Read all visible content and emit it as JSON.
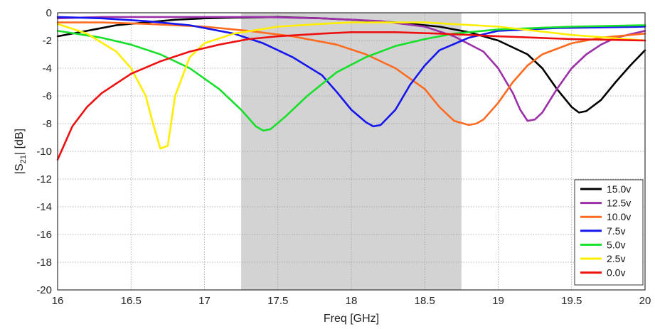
{
  "chart_data": {
    "type": "line",
    "title": "",
    "xlabel": "Freq [GHz]",
    "ylabel": "|S21| [dB]",
    "ylabel_main": "|S",
    "ylabel_sub": "21",
    "ylabel_rest": "| [dB]",
    "xlim": [
      16,
      20
    ],
    "ylim": [
      -20,
      0
    ],
    "xticks": [
      "16",
      "16.5",
      "17",
      "17.5",
      "18",
      "18.5",
      "19",
      "19.5",
      "20"
    ],
    "yticks": [
      "0",
      "-2",
      "-4",
      "-6",
      "-8",
      "-10",
      "-12",
      "-14",
      "-16",
      "-18",
      "-20"
    ],
    "grid": true,
    "legend_position": "bottom-right",
    "shaded_band": {
      "x_start": 17.25,
      "x_end": 18.75,
      "color": "#d3d3d3"
    },
    "series": [
      {
        "name": "15.0v",
        "color": "#000000",
        "x": [
          16.0,
          16.2,
          16.4,
          16.6,
          16.8,
          17.0,
          17.2,
          17.5,
          17.8,
          18.0,
          18.3,
          18.6,
          18.8,
          19.0,
          19.2,
          19.3,
          19.4,
          19.5,
          19.55,
          19.6,
          19.7,
          19.8,
          19.9,
          20.0
        ],
        "y": [
          -1.7,
          -1.3,
          -0.9,
          -0.7,
          -0.5,
          -0.4,
          -0.35,
          -0.3,
          -0.4,
          -0.5,
          -0.7,
          -1.0,
          -1.4,
          -2.0,
          -3.0,
          -4.0,
          -5.5,
          -6.8,
          -7.2,
          -7.1,
          -6.3,
          -5.0,
          -3.8,
          -2.7
        ]
      },
      {
        "name": "12.5v",
        "color": "#9b30a8",
        "x": [
          16.0,
          16.3,
          16.6,
          17.0,
          17.4,
          17.8,
          18.2,
          18.5,
          18.7,
          18.9,
          19.0,
          19.1,
          19.15,
          19.2,
          19.25,
          19.3,
          19.4,
          19.5,
          19.6,
          19.7,
          19.8,
          20.0
        ],
        "y": [
          -0.4,
          -0.3,
          -0.3,
          -0.3,
          -0.3,
          -0.4,
          -0.6,
          -1.0,
          -1.7,
          -2.8,
          -4.0,
          -5.8,
          -7.0,
          -7.8,
          -7.7,
          -7.2,
          -5.5,
          -4.0,
          -3.0,
          -2.3,
          -1.8,
          -1.3
        ]
      },
      {
        "name": "10.0v",
        "color": "#ff6a1f",
        "x": [
          16.0,
          16.3,
          16.6,
          17.0,
          17.3,
          17.6,
          17.9,
          18.1,
          18.3,
          18.5,
          18.6,
          18.7,
          18.8,
          18.85,
          18.9,
          19.0,
          19.1,
          19.2,
          19.3,
          19.5,
          19.7,
          20.0
        ],
        "y": [
          -0.7,
          -0.7,
          -0.8,
          -1.0,
          -1.3,
          -1.7,
          -2.3,
          -3.0,
          -4.0,
          -5.5,
          -6.8,
          -7.8,
          -8.1,
          -8.0,
          -7.7,
          -6.5,
          -5.0,
          -3.8,
          -3.0,
          -2.2,
          -1.8,
          -1.5
        ]
      },
      {
        "name": "7.5v",
        "color": "#1515ef",
        "x": [
          16.0,
          16.3,
          16.6,
          16.9,
          17.2,
          17.4,
          17.6,
          17.8,
          17.9,
          18.0,
          18.1,
          18.15,
          18.2,
          18.3,
          18.4,
          18.5,
          18.6,
          18.8,
          19.0,
          19.4,
          20.0
        ],
        "y": [
          -0.3,
          -0.4,
          -0.6,
          -0.9,
          -1.5,
          -2.2,
          -3.2,
          -4.5,
          -5.7,
          -7.0,
          -7.9,
          -8.2,
          -8.1,
          -7.0,
          -5.2,
          -3.8,
          -2.7,
          -1.8,
          -1.3,
          -1.1,
          -1.0
        ]
      },
      {
        "name": "5.0v",
        "color": "#16e02a",
        "x": [
          16.0,
          16.3,
          16.5,
          16.7,
          16.9,
          17.1,
          17.25,
          17.35,
          17.4,
          17.45,
          17.55,
          17.7,
          17.9,
          18.1,
          18.3,
          18.5,
          18.7,
          19.0,
          19.5,
          20.0
        ],
        "y": [
          -1.3,
          -1.8,
          -2.3,
          -3.0,
          -4.0,
          -5.5,
          -7.0,
          -8.2,
          -8.5,
          -8.4,
          -7.5,
          -6.0,
          -4.3,
          -3.2,
          -2.4,
          -1.9,
          -1.5,
          -1.2,
          -1.0,
          -0.9
        ]
      },
      {
        "name": "2.5v",
        "color": "#ffee00",
        "x": [
          16.0,
          16.2,
          16.4,
          16.5,
          16.6,
          16.65,
          16.7,
          16.75,
          16.8,
          16.9,
          17.0,
          17.2,
          17.5,
          17.8,
          18.0,
          18.5,
          19.0,
          19.5,
          20.0
        ],
        "y": [
          -0.8,
          -1.5,
          -2.8,
          -4.0,
          -6.0,
          -8.0,
          -9.8,
          -9.6,
          -6.0,
          -3.2,
          -2.2,
          -1.5,
          -1.0,
          -0.8,
          -0.7,
          -0.7,
          -1.0,
          -1.6,
          -2.0
        ]
      },
      {
        "name": "0.0v",
        "color": "#ee1010",
        "x": [
          16.0,
          16.1,
          16.2,
          16.3,
          16.5,
          16.7,
          16.9,
          17.1,
          17.3,
          17.5,
          17.8,
          18.0,
          18.3,
          18.6,
          19.0,
          19.5,
          20.0
        ],
        "y": [
          -10.6,
          -8.2,
          -6.8,
          -5.8,
          -4.4,
          -3.5,
          -2.8,
          -2.3,
          -1.9,
          -1.7,
          -1.5,
          -1.4,
          -1.4,
          -1.5,
          -1.7,
          -1.9,
          -2.0
        ]
      }
    ]
  }
}
